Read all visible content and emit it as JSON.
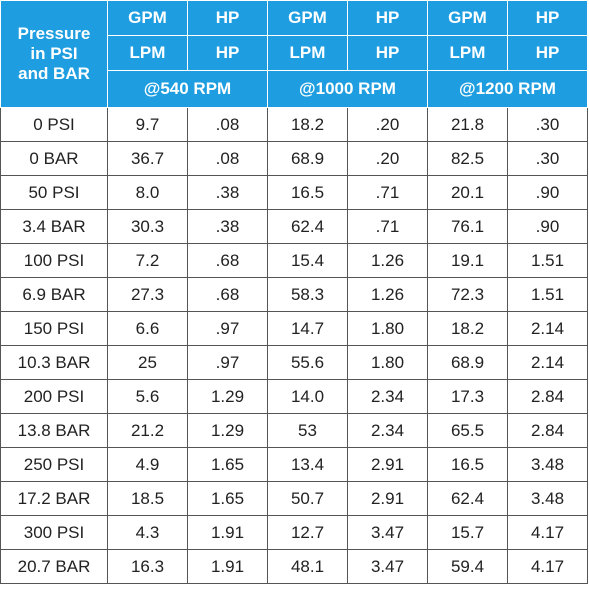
{
  "header": {
    "corner_label": [
      "Pressure",
      "in PSI",
      "and BAR"
    ],
    "row1": [
      "GPM",
      "HP",
      "GPM",
      "HP",
      "GPM",
      "HP"
    ],
    "row2": [
      "LPM",
      "HP",
      "LPM",
      "HP",
      "LPM",
      "HP"
    ],
    "rpm": [
      "@540 RPM",
      "@1000 RPM",
      "@1200 RPM"
    ]
  },
  "rows": [
    [
      "0 PSI",
      "9.7",
      ".08",
      "18.2",
      ".20",
      "21.8",
      ".30"
    ],
    [
      "0 BAR",
      "36.7",
      ".08",
      "68.9",
      ".20",
      "82.5",
      ".30"
    ],
    [
      "50 PSI",
      "8.0",
      ".38",
      "16.5",
      ".71",
      "20.1",
      ".90"
    ],
    [
      "3.4 BAR",
      "30.3",
      ".38",
      "62.4",
      ".71",
      "76.1",
      ".90"
    ],
    [
      "100 PSI",
      "7.2",
      ".68",
      "15.4",
      "1.26",
      "19.1",
      "1.51"
    ],
    [
      "6.9 BAR",
      "27.3",
      ".68",
      "58.3",
      "1.26",
      "72.3",
      "1.51"
    ],
    [
      "150 PSI",
      "6.6",
      ".97",
      "14.7",
      "1.80",
      "18.2",
      "2.14"
    ],
    [
      "10.3 BAR",
      "25",
      ".97",
      "55.6",
      "1.80",
      "68.9",
      "2.14"
    ],
    [
      "200 PSI",
      "5.6",
      "1.29",
      "14.0",
      "2.34",
      "17.3",
      "2.84"
    ],
    [
      "13.8 BAR",
      "21.2",
      "1.29",
      "53",
      "2.34",
      "65.5",
      "2.84"
    ],
    [
      "250 PSI",
      "4.9",
      "1.65",
      "13.4",
      "2.91",
      "16.5",
      "3.48"
    ],
    [
      "17.2 BAR",
      "18.5",
      "1.65",
      "50.7",
      "2.91",
      "62.4",
      "3.48"
    ],
    [
      "300 PSI",
      "4.3",
      "1.91",
      "12.7",
      "3.47",
      "15.7",
      "4.17"
    ],
    [
      "20.7 BAR",
      "16.3",
      "1.91",
      "48.1",
      "3.47",
      "59.4",
      "4.17"
    ]
  ],
  "colors": {
    "header_bg": "#1e9ee0",
    "header_text": "#ffffff",
    "grid": "#555555"
  }
}
